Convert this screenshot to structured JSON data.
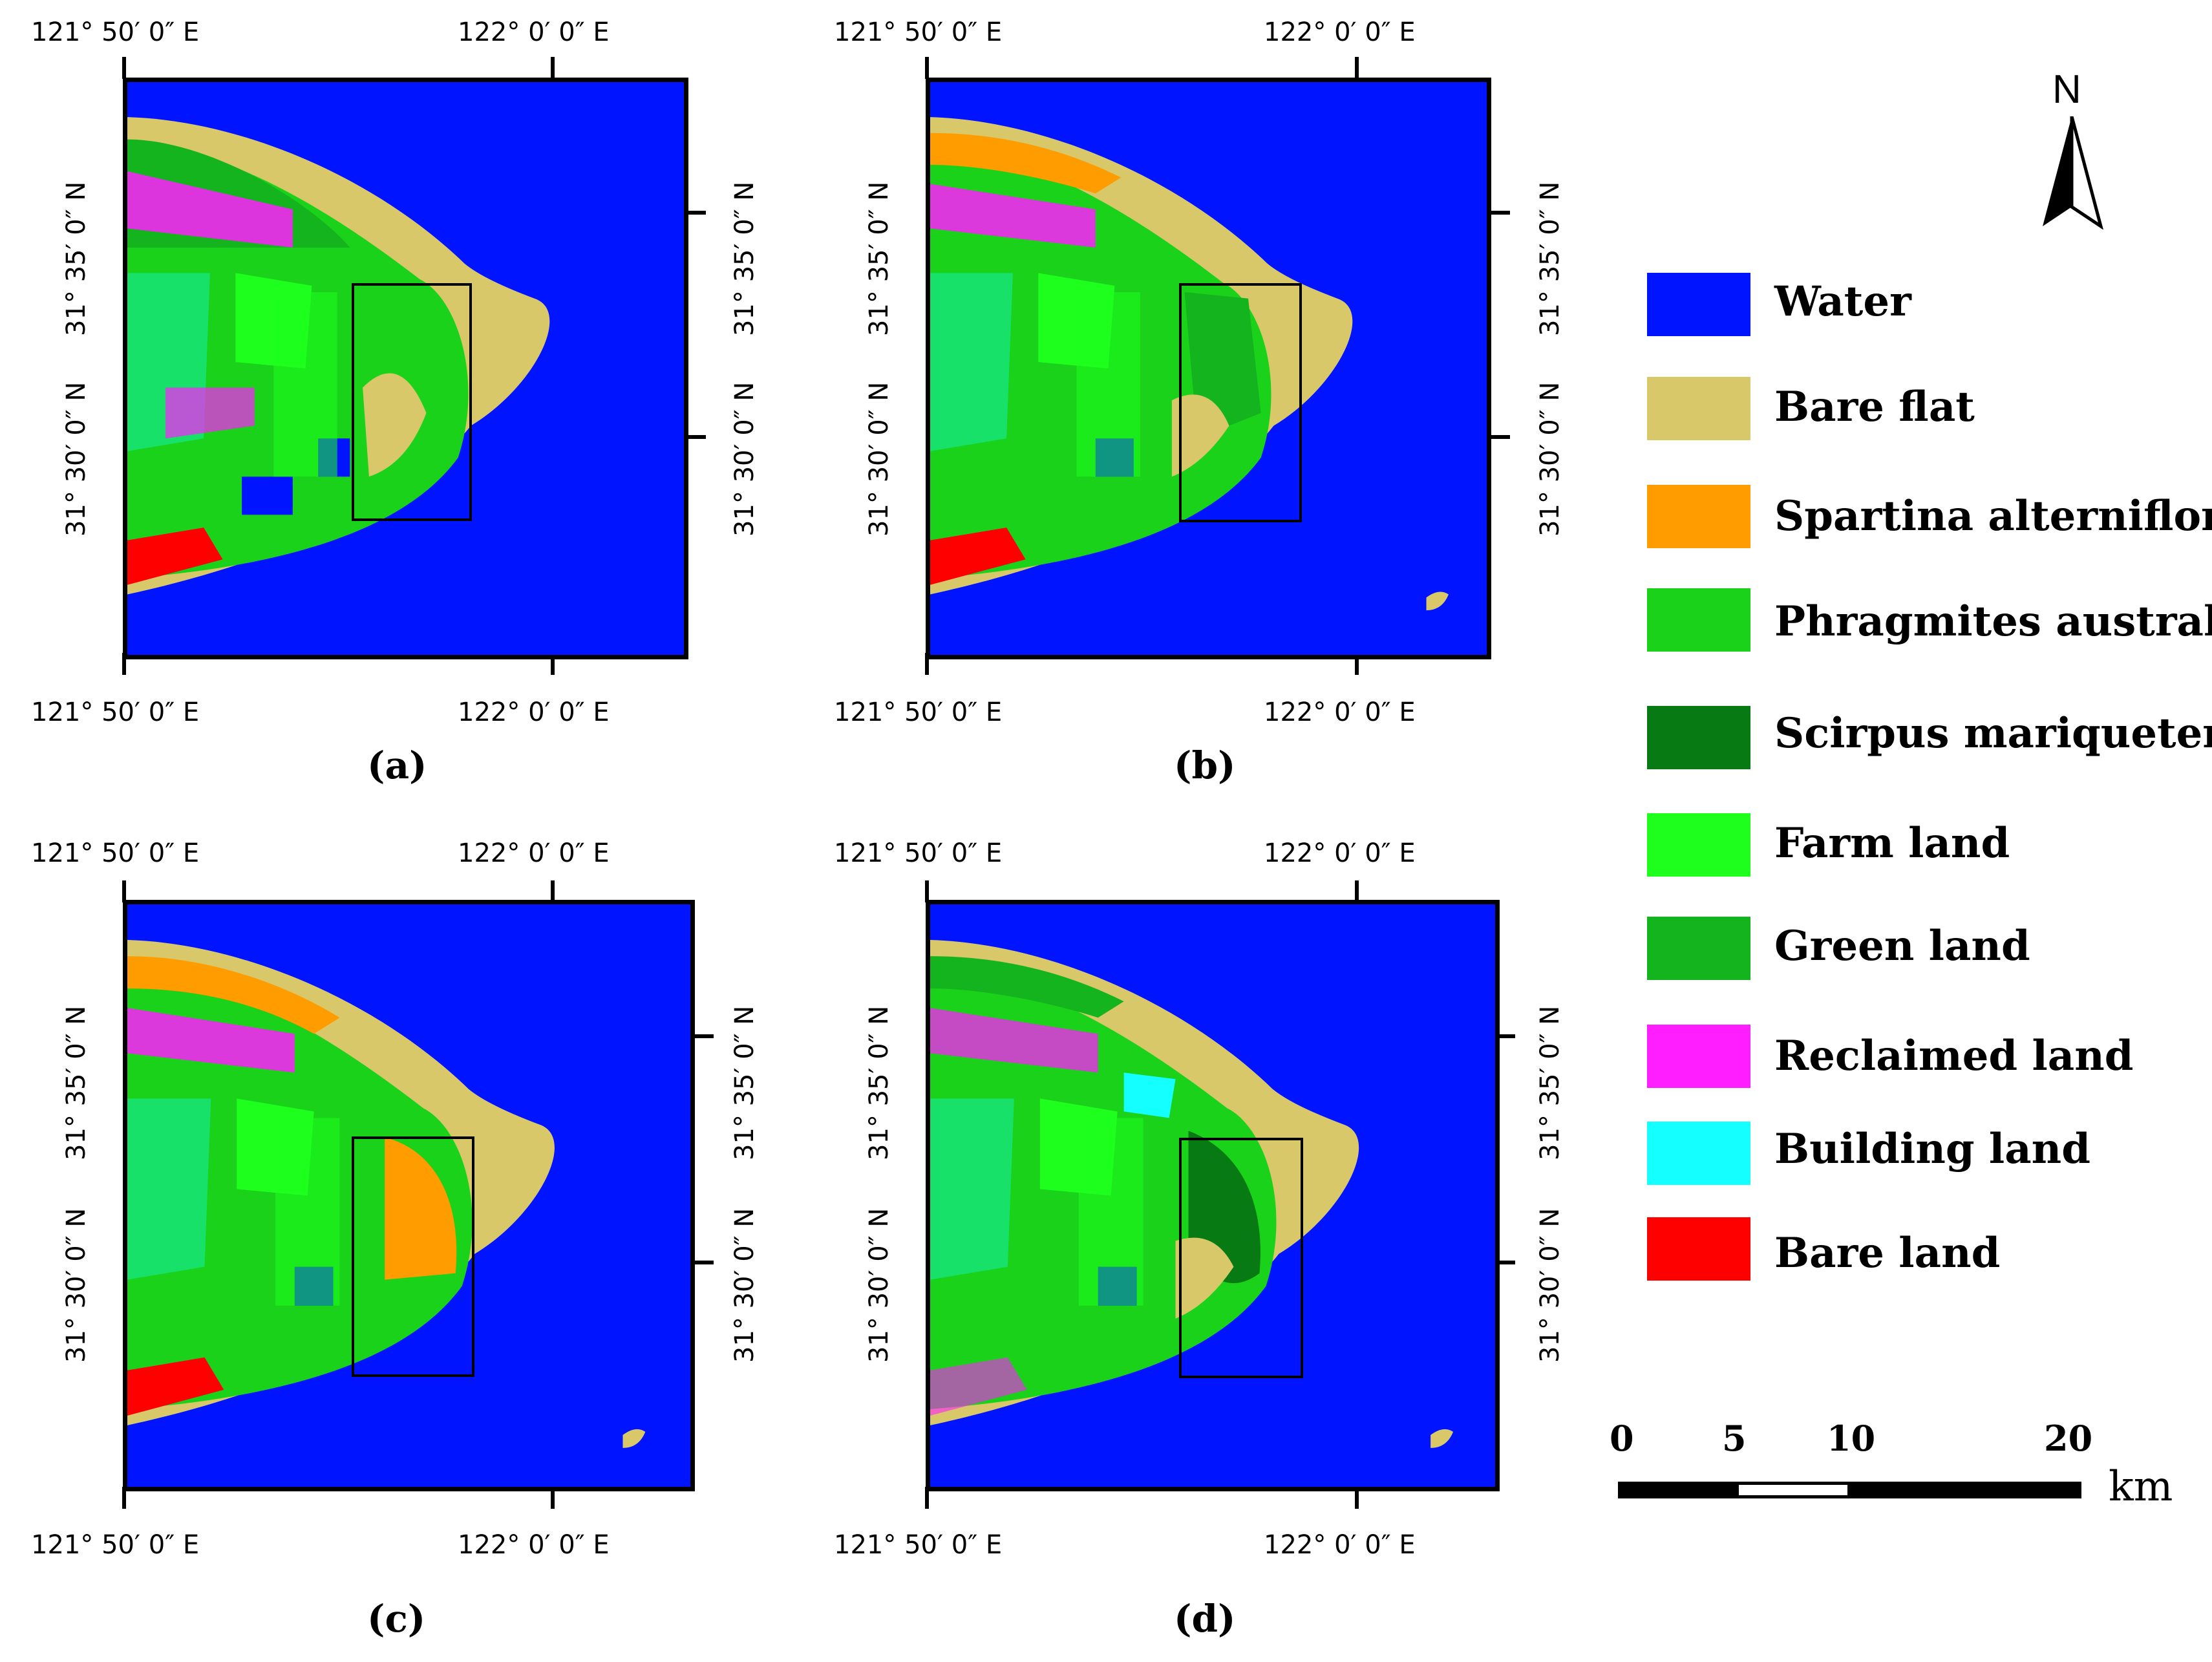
{
  "coords": {
    "lon_left": "121°  50′ 0″ E",
    "lon_right": "122°  0′ 0″ E",
    "lat_top": "31°  35′ 0″ N",
    "lat_bottom": "31°  30′ 0″ N"
  },
  "panels": [
    {
      "caption": "(a)"
    },
    {
      "caption": "(b)"
    },
    {
      "caption": "(c)"
    },
    {
      "caption": "(d)"
    }
  ],
  "north_arrow": {
    "label": "N"
  },
  "legend": [
    {
      "label": "Water",
      "color": "#0014ff"
    },
    {
      "label": "Bare flat",
      "color": "#d8c86a"
    },
    {
      "label": "Spartina alterniflora",
      "color": "#ff9c00"
    },
    {
      "label": "Phragmites australis",
      "color": "#19d219"
    },
    {
      "label": "Scirpus mariqueter",
      "color": "#087a14"
    },
    {
      "label": "Farm land",
      "color": "#1eff1e"
    },
    {
      "label": "Green land",
      "color": "#14b41e"
    },
    {
      "label": "Reclaimed land",
      "color": "#ff1eff"
    },
    {
      "label": "Building land",
      "color": "#14ffff"
    },
    {
      "label": "Bare land",
      "color": "#ff0000"
    }
  ],
  "scale_bar": {
    "ticks": [
      "0",
      "5",
      "10",
      "20"
    ],
    "unit": "km"
  }
}
